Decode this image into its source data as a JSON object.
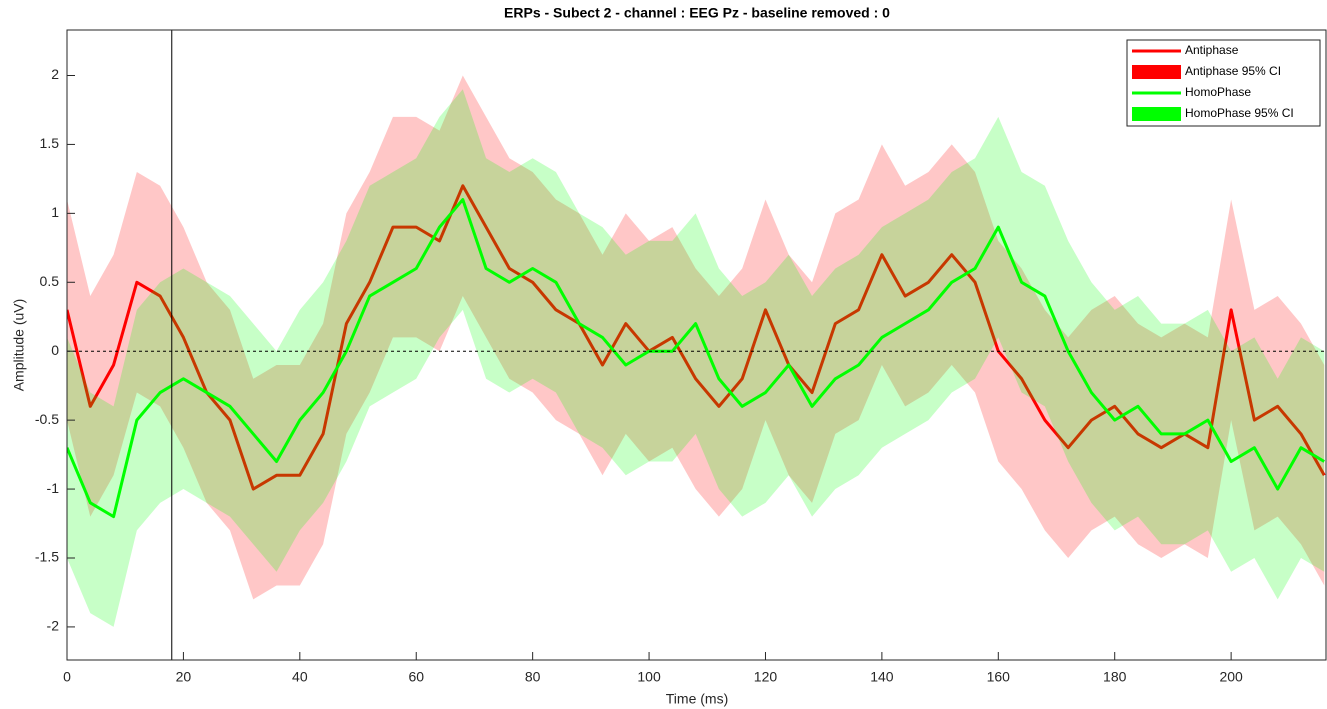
{
  "chart_data": {
    "type": "line",
    "title": "ERPs - Subect 2 - channel : EEG Pz - baseline removed : 0",
    "x_label": "Time (ms)",
    "y_label": "Amplitude (uV)",
    "x": [
      0,
      4,
      8,
      12,
      16,
      20,
      24,
      28,
      32,
      36,
      40,
      44,
      48,
      52,
      56,
      60,
      64,
      68,
      72,
      76,
      80,
      84,
      88,
      92,
      96,
      100,
      104,
      108,
      112,
      116,
      120,
      124,
      128,
      132,
      136,
      140,
      144,
      148,
      152,
      156,
      160,
      164,
      168,
      172,
      176,
      180,
      184,
      188,
      192,
      196,
      200,
      204,
      208,
      212,
      216
    ],
    "series": [
      {
        "name": "Antiphase",
        "ci_name": "Antiphase 95% CI",
        "color": "#ff0000",
        "values": [
          0.3,
          -0.4,
          -0.1,
          0.5,
          0.4,
          0.1,
          -0.3,
          -0.5,
          -1.0,
          -0.9,
          -0.9,
          -0.6,
          0.2,
          0.5,
          0.9,
          0.9,
          0.8,
          1.2,
          0.9,
          0.6,
          0.5,
          0.3,
          0.2,
          -0.1,
          0.2,
          0.0,
          0.1,
          -0.2,
          -0.4,
          -0.2,
          0.3,
          -0.1,
          -0.3,
          0.2,
          0.3,
          0.7,
          0.4,
          0.5,
          0.7,
          0.5,
          0.0,
          -0.2,
          -0.5,
          -0.7,
          -0.5,
          -0.4,
          -0.6,
          -0.7,
          -0.6,
          -0.7,
          0.3,
          -0.5,
          -0.4,
          -0.6,
          -0.9
        ],
        "ci_upper": [
          1.1,
          0.4,
          0.7,
          1.3,
          1.2,
          0.9,
          0.5,
          0.3,
          -0.2,
          -0.1,
          -0.1,
          0.2,
          1.0,
          1.3,
          1.7,
          1.7,
          1.6,
          2.0,
          1.7,
          1.4,
          1.3,
          1.1,
          1.0,
          0.7,
          1.0,
          0.8,
          0.9,
          0.6,
          0.4,
          0.6,
          1.1,
          0.7,
          0.5,
          1.0,
          1.1,
          1.5,
          1.2,
          1.3,
          1.5,
          1.3,
          0.8,
          0.6,
          0.3,
          0.1,
          0.3,
          0.4,
          0.2,
          0.1,
          0.2,
          0.1,
          1.1,
          0.3,
          0.4,
          0.2,
          -0.1
        ],
        "ci_lower": [
          -0.5,
          -1.2,
          -0.9,
          -0.3,
          -0.4,
          -0.7,
          -1.1,
          -1.3,
          -1.8,
          -1.7,
          -1.7,
          -1.4,
          -0.6,
          -0.3,
          0.1,
          0.1,
          0.0,
          0.4,
          0.1,
          -0.2,
          -0.3,
          -0.5,
          -0.6,
          -0.9,
          -0.6,
          -0.8,
          -0.7,
          -1.0,
          -1.2,
          -1.0,
          -0.5,
          -0.9,
          -1.1,
          -0.6,
          -0.5,
          -0.1,
          -0.4,
          -0.3,
          -0.1,
          -0.3,
          -0.8,
          -1.0,
          -1.3,
          -1.5,
          -1.3,
          -1.2,
          -1.4,
          -1.5,
          -1.4,
          -1.5,
          -0.5,
          -1.3,
          -1.2,
          -1.4,
          -1.7
        ]
      },
      {
        "name": "HomoPhase",
        "ci_name": "HomoPhase 95% CI",
        "color": "#00ff00",
        "values": [
          -0.7,
          -1.1,
          -1.2,
          -0.5,
          -0.3,
          -0.2,
          -0.3,
          -0.4,
          -0.6,
          -0.8,
          -0.5,
          -0.3,
          0.0,
          0.4,
          0.5,
          0.6,
          0.9,
          1.1,
          0.6,
          0.5,
          0.6,
          0.5,
          0.2,
          0.1,
          -0.1,
          0.0,
          0.0,
          0.2,
          -0.2,
          -0.4,
          -0.3,
          -0.1,
          -0.4,
          -0.2,
          -0.1,
          0.1,
          0.2,
          0.3,
          0.5,
          0.6,
          0.9,
          0.5,
          0.4,
          0.0,
          -0.3,
          -0.5,
          -0.4,
          -0.6,
          -0.6,
          -0.5,
          -0.8,
          -0.7,
          -1.0,
          -0.7,
          -0.8
        ],
        "ci_upper": [
          0.1,
          -0.3,
          -0.4,
          0.3,
          0.5,
          0.6,
          0.5,
          0.4,
          0.2,
          0.0,
          0.3,
          0.5,
          0.8,
          1.2,
          1.3,
          1.4,
          1.7,
          1.9,
          1.4,
          1.3,
          1.4,
          1.3,
          1.0,
          0.9,
          0.7,
          0.8,
          0.8,
          1.0,
          0.6,
          0.4,
          0.5,
          0.7,
          0.4,
          0.6,
          0.7,
          0.9,
          1.0,
          1.1,
          1.3,
          1.4,
          1.7,
          1.3,
          1.2,
          0.8,
          0.5,
          0.3,
          0.4,
          0.2,
          0.2,
          0.3,
          0.0,
          0.1,
          -0.2,
          0.1,
          0.0
        ],
        "ci_lower": [
          -1.5,
          -1.9,
          -2.0,
          -1.3,
          -1.1,
          -1.0,
          -1.1,
          -1.2,
          -1.4,
          -1.6,
          -1.3,
          -1.1,
          -0.8,
          -0.4,
          -0.3,
          -0.2,
          0.1,
          0.3,
          -0.2,
          -0.3,
          -0.2,
          -0.3,
          -0.6,
          -0.7,
          -0.9,
          -0.8,
          -0.8,
          -0.6,
          -1.0,
          -1.2,
          -1.1,
          -0.9,
          -1.2,
          -1.0,
          -0.9,
          -0.7,
          -0.6,
          -0.5,
          -0.3,
          -0.2,
          0.1,
          -0.3,
          -0.4,
          -0.8,
          -1.1,
          -1.3,
          -1.2,
          -1.4,
          -1.4,
          -1.3,
          -1.6,
          -1.5,
          -1.8,
          -1.5,
          -1.6
        ]
      }
    ],
    "ci_opacity": 0.22,
    "xlim": [
      0,
      216.3
    ],
    "ylim": [
      -2.24,
      2.33
    ],
    "xticks": [
      0,
      20,
      40,
      60,
      80,
      100,
      120,
      140,
      160,
      180,
      200
    ],
    "yticks": [
      -2,
      -1.5,
      -1,
      -0.5,
      0,
      0.5,
      1,
      1.5,
      2
    ],
    "vline": 18,
    "hline": 0,
    "legend": "northeast"
  }
}
